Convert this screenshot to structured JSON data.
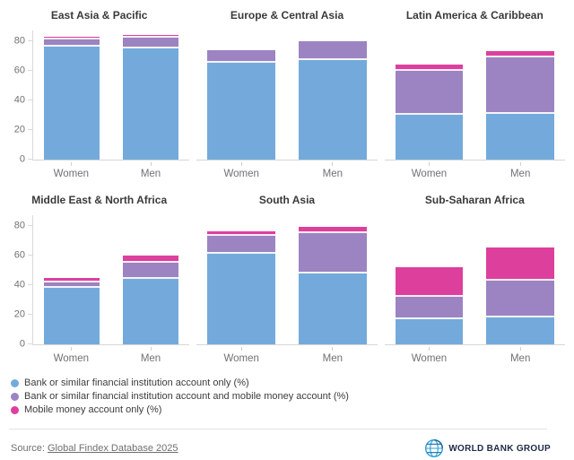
{
  "chart_data": {
    "type": "bar",
    "stacked": true,
    "unit": "%",
    "categories": [
      "Women",
      "Men"
    ],
    "y_ticks": [
      0,
      20,
      40,
      60,
      80
    ],
    "ylim": [
      0,
      87
    ],
    "grid": false,
    "legend_position": "bottom-left",
    "series": [
      {
        "name": "Bank or similar financial institution account only (%)",
        "color": "#74aadb"
      },
      {
        "name": "Bank or similar financial institution account and mobile money account (%)",
        "color": "#9b84c1"
      },
      {
        "name": "Mobile money account only (%)",
        "color": "#dd3f9d"
      }
    ],
    "panels": [
      {
        "title": "East Asia & Pacific",
        "show_y_axis": true,
        "values": {
          "Women": [
            76,
            5,
            2
          ],
          "Men": [
            75,
            7,
            2
          ]
        }
      },
      {
        "title": "Europe & Central Asia",
        "show_y_axis": false,
        "values": {
          "Women": [
            65,
            9,
            0
          ],
          "Men": [
            67,
            13,
            0
          ]
        }
      },
      {
        "title": "Latin America & Caribbean",
        "show_y_axis": false,
        "values": {
          "Women": [
            30,
            30,
            4
          ],
          "Men": [
            31,
            38,
            4
          ]
        }
      },
      {
        "title": "Middle East & North Africa",
        "show_y_axis": true,
        "values": {
          "Women": [
            38,
            4,
            3
          ],
          "Men": [
            44,
            11,
            5
          ]
        }
      },
      {
        "title": "South Asia",
        "show_y_axis": false,
        "values": {
          "Women": [
            61,
            12,
            3
          ],
          "Men": [
            48,
            27,
            4
          ]
        }
      },
      {
        "title": "Sub-Saharan Africa",
        "show_y_axis": false,
        "values": {
          "Women": [
            17,
            15,
            20
          ],
          "Men": [
            18,
            25,
            22
          ]
        }
      }
    ]
  },
  "footer": {
    "source_prefix": "Source:",
    "source_link_text": "Global Findex Database 2025",
    "logo_text": "WORLD BANK GROUP"
  }
}
